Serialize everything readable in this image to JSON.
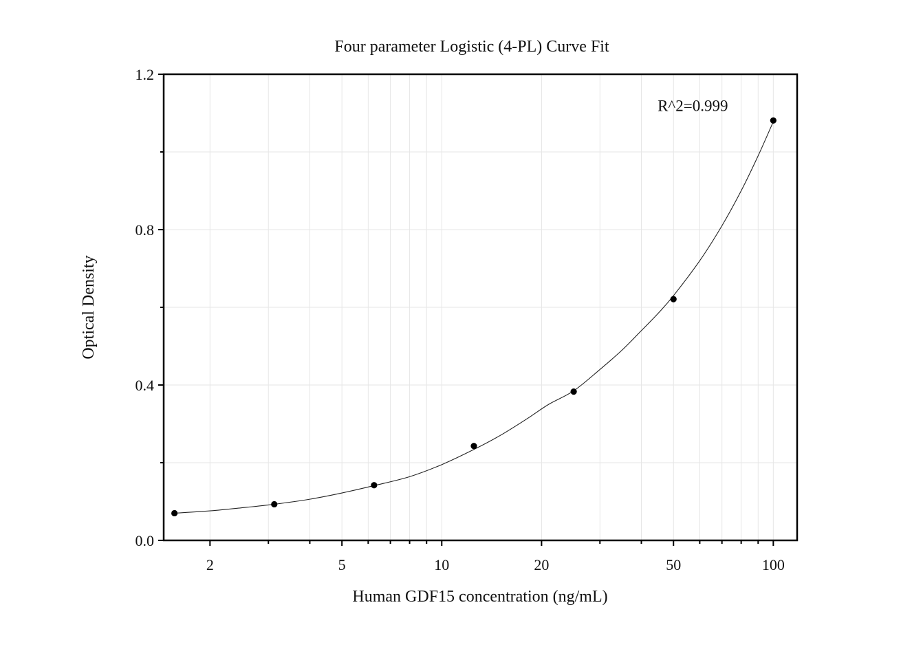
{
  "chart_data": {
    "type": "scatter",
    "title": "Four parameter Logistic (4-PL) Curve Fit",
    "xlabel": "Human GDF15 concentration (ng/mL)",
    "ylabel": "Optical Density",
    "x_scale": "log",
    "xlim": [
      1.45,
      118
    ],
    "ylim": [
      0,
      1.2
    ],
    "x_ticks": [
      2,
      5,
      10,
      20,
      50,
      100
    ],
    "x_tick_labels": [
      "2",
      "5",
      "10",
      "20",
      "50",
      "100"
    ],
    "y_ticks": [
      0,
      0.4,
      0.8,
      1.2
    ],
    "y_tick_labels": [
      "0.0",
      "0.4",
      "0.8",
      "1.2"
    ],
    "y_minor_ticks": [
      0.2,
      0.6,
      1.0
    ],
    "grid": true,
    "series": [
      {
        "x": [
          1.5625,
          3.125,
          6.25,
          12.5,
          25,
          50,
          100
        ],
        "y": [
          0.07,
          0.093,
          0.142,
          0.243,
          0.383,
          0.621,
          1.081
        ]
      }
    ],
    "fit_curve": {
      "model": "4-PL",
      "x": [
        1.5625,
        2,
        2.5,
        3.125,
        4,
        5,
        6.25,
        8,
        10,
        12.5,
        15,
        18,
        21,
        25,
        30,
        35,
        40,
        45,
        50,
        60,
        70,
        80,
        90,
        100
      ],
      "y": [
        0.07,
        0.076,
        0.084,
        0.093,
        0.106,
        0.122,
        0.141,
        0.164,
        0.195,
        0.234,
        0.27,
        0.312,
        0.35,
        0.385,
        0.44,
        0.49,
        0.54,
        0.585,
        0.63,
        0.72,
        0.81,
        0.9,
        0.99,
        1.078
      ]
    },
    "annotations": [
      {
        "text": "R^2=0.999",
        "x": 73,
        "y": 1.105
      }
    ]
  }
}
